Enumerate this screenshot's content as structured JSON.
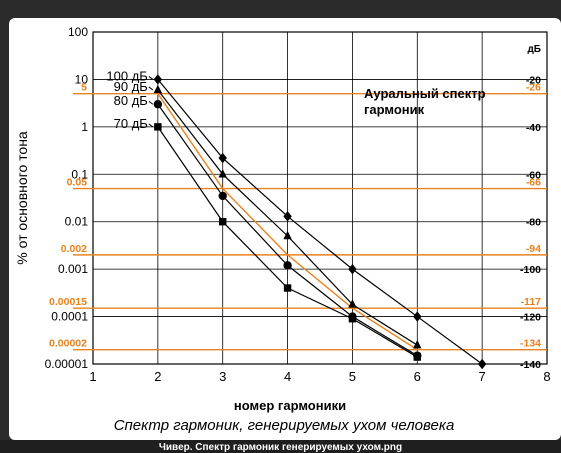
{
  "chart_data": {
    "type": "line",
    "title": "Аурaльный спектр гармоник",
    "caption": "Спектр гармоник, генерируемых ухом человека",
    "xlabel": "номер гармоники",
    "ylabel": "% от основного тона",
    "xlim": [
      1,
      8
    ],
    "x_ticks": [
      "1",
      "2",
      "3",
      "4",
      "5",
      "6",
      "7",
      "8"
    ],
    "y_scale": "log",
    "ylim": [
      1e-05,
      100
    ],
    "y_ticks": [
      {
        "v": 100,
        "label": "100"
      },
      {
        "v": 10,
        "label": "10"
      },
      {
        "v": 1,
        "label": "1"
      },
      {
        "v": 0.1,
        "label": "0.1"
      },
      {
        "v": 0.01,
        "label": "0.01"
      },
      {
        "v": 0.001,
        "label": "0.001"
      },
      {
        "v": 0.0001,
        "label": "0.0001"
      },
      {
        "v": 1e-05,
        "label": "0.00001"
      }
    ],
    "db_axis_title": "дБ",
    "db_ticks": [
      {
        "db": -20,
        "label": "-20"
      },
      {
        "db": -40,
        "label": "-40"
      },
      {
        "db": -60,
        "label": "-60"
      },
      {
        "db": -80,
        "label": "-80"
      },
      {
        "db": -100,
        "label": "-100"
      },
      {
        "db": -120,
        "label": "-120"
      },
      {
        "db": -140,
        "label": "-140"
      }
    ],
    "series": [
      {
        "name": "100 дБ",
        "marker": "diamond",
        "x": [
          2,
          3,
          4,
          5,
          6,
          7
        ],
        "y": [
          10,
          0.22,
          0.013,
          0.001,
          0.0001,
          1e-05
        ]
      },
      {
        "name": "90 дБ",
        "marker": "triangle",
        "x": [
          2,
          3,
          4,
          5,
          6
        ],
        "y": [
          6,
          0.1,
          0.005,
          0.00018,
          2.5e-05
        ]
      },
      {
        "name": "80 дБ",
        "marker": "circle",
        "x": [
          2,
          3,
          4,
          5,
          6
        ],
        "y": [
          3,
          0.035,
          0.0012,
          0.0001,
          1.5e-05
        ]
      },
      {
        "name": "70 дБ",
        "marker": "square",
        "x": [
          2,
          3,
          4,
          5,
          6
        ],
        "y": [
          1,
          0.01,
          0.0004,
          9e-05,
          1.4e-05
        ]
      }
    ],
    "orange_series": {
      "x": [
        2,
        3,
        4,
        5,
        6
      ],
      "y": [
        5,
        0.05,
        0.002,
        0.00015,
        2e-05
      ]
    },
    "orange_annotations": [
      {
        "pct": 5,
        "pct_label": "5",
        "db_label": "-26"
      },
      {
        "pct": 0.05,
        "pct_label": "0.05",
        "db_label": "-66"
      },
      {
        "pct": 0.002,
        "pct_label": "0.002",
        "db_label": "-94"
      },
      {
        "pct": 0.00015,
        "pct_label": "0.00015",
        "db_label": "-117"
      },
      {
        "pct": 2e-05,
        "pct_label": "0.00002",
        "db_label": "-134"
      }
    ],
    "grid": true,
    "colors": {
      "orange": "#e8821e",
      "black": "#000000"
    }
  },
  "footer": {
    "caption": "Чивер. Спектр гармоник генерируемых ухом.png"
  }
}
